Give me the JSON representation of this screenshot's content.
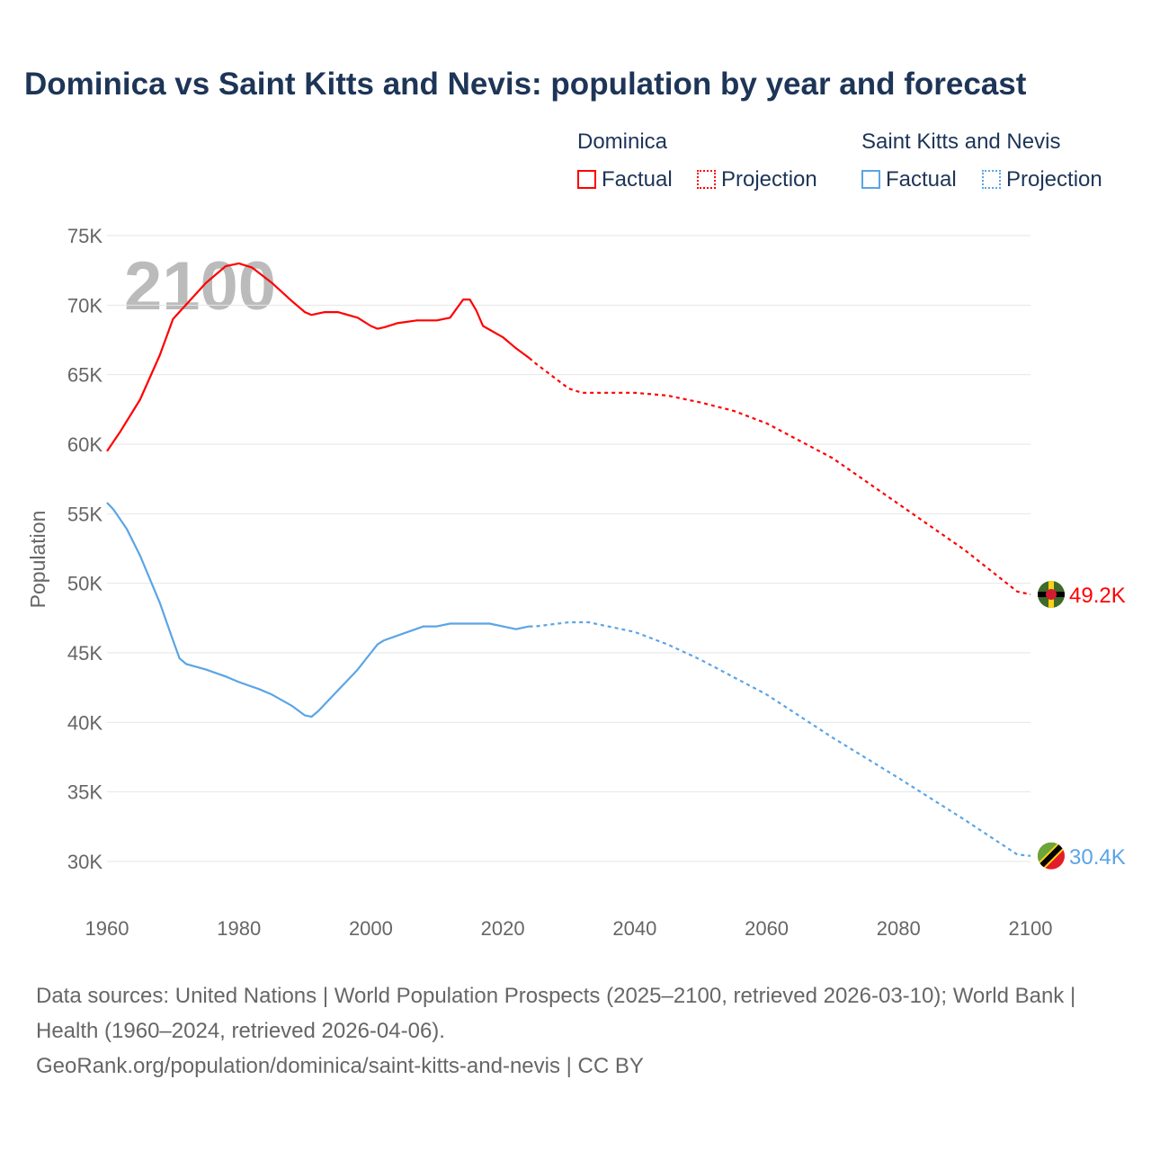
{
  "title": "Dominica vs Saint Kitts and Nevis: population by year and forecast",
  "legend": {
    "groups": [
      {
        "name": "Dominica",
        "factual": "Factual",
        "projection": "Projection",
        "color": "#ff0000"
      },
      {
        "name": "Saint Kitts and Nevis",
        "factual": "Factual",
        "projection": "Projection",
        "color": "#5ba4e6"
      }
    ]
  },
  "year_watermark": "2100",
  "source": {
    "line1": "Data sources: United Nations | World Population Prospects (2025–2100, retrieved 2026-03-10); World Bank | Health (1960–2024, retrieved 2026-04-06).",
    "line2": "GeoRank.org/population/dominica/saint-kitts-and-nevis | CC BY"
  },
  "chart_data": {
    "type": "line",
    "title": "Dominica vs Saint Kitts and Nevis: population by year and forecast",
    "xlabel": "",
    "ylabel": "Population",
    "xlim": [
      1960,
      2100
    ],
    "ylim": [
      30000,
      75000
    ],
    "xticks": [
      1960,
      1980,
      2000,
      2020,
      2040,
      2060,
      2080,
      2100
    ],
    "xtick_labels": [
      "1960",
      "1980",
      "2000",
      "2020",
      "2040",
      "2060",
      "2080",
      "2100"
    ],
    "yticks": [
      30000,
      35000,
      40000,
      45000,
      50000,
      55000,
      60000,
      65000,
      70000,
      75000
    ],
    "ytick_labels": [
      "30K",
      "35K",
      "40K",
      "45K",
      "50K",
      "55K",
      "60K",
      "65K",
      "70K",
      "75K"
    ],
    "grid": true,
    "legend_placement": "top-right",
    "series": [
      {
        "name": "Dominica",
        "color": "#ff0000",
        "end_label": "49.2K",
        "factual": {
          "x": [
            1960,
            1962,
            1965,
            1968,
            1970,
            1975,
            1978,
            1980,
            1982,
            1985,
            1988,
            1990,
            1991,
            1993,
            1995,
            1998,
            2000,
            2001,
            2002,
            2004,
            2007,
            2010,
            2011,
            2012,
            2014,
            2015,
            2016,
            2017,
            2020,
            2022,
            2024
          ],
          "y": [
            59.5,
            60.9,
            63.2,
            66.4,
            69.0,
            71.6,
            72.8,
            73.0,
            72.7,
            71.6,
            70.3,
            69.5,
            69.3,
            69.5,
            69.5,
            69.1,
            68.5,
            68.3,
            68.4,
            68.7,
            68.9,
            68.9,
            69.0,
            69.1,
            70.4,
            70.4,
            69.6,
            68.5,
            67.7,
            66.9,
            66.2
          ]
        },
        "projection": {
          "x": [
            2024,
            2025,
            2030,
            2032,
            2040,
            2045,
            2050,
            2055,
            2060,
            2070,
            2080,
            2090,
            2098,
            2100
          ],
          "y": [
            66.2,
            65.8,
            64.0,
            63.7,
            63.7,
            63.5,
            63.0,
            62.4,
            61.5,
            59.0,
            55.7,
            52.4,
            49.4,
            49.2
          ]
        }
      },
      {
        "name": "Saint Kitts and Nevis",
        "color": "#5ba4e6",
        "end_label": "30.4K",
        "factual": {
          "x": [
            1960,
            1961,
            1963,
            1965,
            1968,
            1970,
            1971,
            1972,
            1975,
            1978,
            1980,
            1983,
            1985,
            1988,
            1990,
            1991,
            1992,
            1995,
            1998,
            2000,
            2001,
            2002,
            2005,
            2008,
            2010,
            2012,
            2015,
            2018,
            2020,
            2022,
            2024
          ],
          "y": [
            55.8,
            55.3,
            53.9,
            52.0,
            48.6,
            45.9,
            44.6,
            44.2,
            43.8,
            43.3,
            42.9,
            42.4,
            42.0,
            41.2,
            40.5,
            40.4,
            40.8,
            42.3,
            43.8,
            45.0,
            45.6,
            45.9,
            46.4,
            46.9,
            46.9,
            47.1,
            47.1,
            47.1,
            46.9,
            46.7,
            46.9
          ]
        },
        "projection": {
          "x": [
            2024,
            2025,
            2030,
            2033,
            2040,
            2045,
            2050,
            2060,
            2070,
            2080,
            2090,
            2098,
            2100
          ],
          "y": [
            46.9,
            46.9,
            47.2,
            47.2,
            46.5,
            45.6,
            44.5,
            42.0,
            38.9,
            36.0,
            33.0,
            30.5,
            30.4
          ]
        }
      }
    ],
    "y_units_note": "series y values in thousands"
  }
}
